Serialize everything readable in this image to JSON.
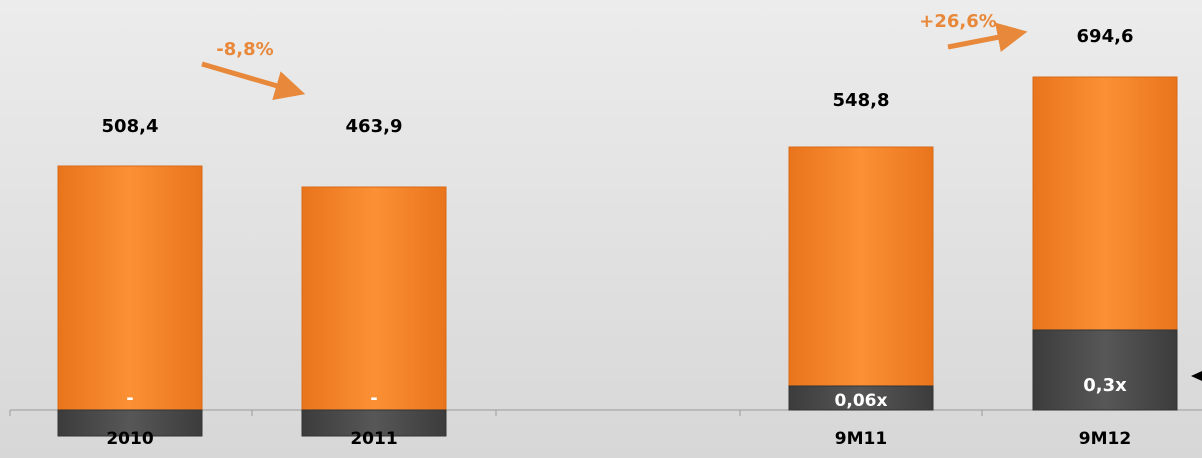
{
  "chart_data": {
    "type": "bar",
    "stacked": true,
    "categories": [
      "2010",
      "2011",
      "",
      "9M11",
      "9M12"
    ],
    "series": [
      {
        "values": [
          508.4,
          463.9,
          null,
          548.8,
          694.6
        ]
      },
      {
        "values": [
          null,
          null,
          null,
          0.06,
          0.3
        ]
      }
    ],
    "total_labels": [
      "508,4",
      "463,9",
      "",
      "548,8",
      "694,6"
    ],
    "segment_labels": [
      "-",
      "-",
      "",
      "0,06x",
      "0,3x"
    ],
    "annotations": [
      {
        "text": "-8,8%",
        "from": "2010",
        "to": "2011"
      },
      {
        "text": "+26,6%",
        "from": "9M11",
        "to": "9M12"
      }
    ],
    "colors": {
      "primary": "#f5842a",
      "secondary": "#4a4a4a",
      "growth": "#e8883a"
    },
    "legend": "none",
    "grid": false
  }
}
